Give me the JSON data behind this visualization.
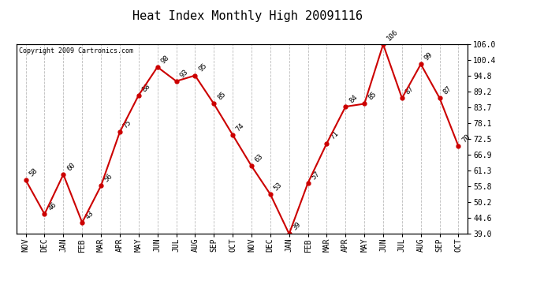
{
  "title": "Heat Index Monthly High 20091116",
  "copyright": "Copyright 2009 Cartronics.com",
  "months": [
    "NOV",
    "DEC",
    "JAN",
    "FEB",
    "MAR",
    "APR",
    "MAY",
    "JUN",
    "JUL",
    "AUG",
    "SEP",
    "OCT",
    "NOV",
    "DEC",
    "JAN",
    "FEB",
    "MAR",
    "APR",
    "MAY",
    "JUN",
    "JUL",
    "AUG",
    "SEP",
    "OCT"
  ],
  "values": [
    58,
    46,
    60,
    43,
    56,
    75,
    88,
    98,
    93,
    95,
    85,
    74,
    63,
    53,
    39,
    57,
    71,
    84,
    85,
    106,
    87,
    99,
    87,
    70
  ],
  "ylim": [
    39.0,
    106.0
  ],
  "yticks": [
    39.0,
    44.6,
    50.2,
    55.8,
    61.3,
    66.9,
    72.5,
    78.1,
    83.7,
    89.2,
    94.8,
    100.4,
    106.0
  ],
  "ytick_labels": [
    "39.0",
    "44.6",
    "50.2",
    "55.8",
    "61.3",
    "66.9",
    "72.5",
    "78.1",
    "83.7",
    "89.2",
    "94.8",
    "100.4",
    "106.0"
  ],
  "line_color": "#cc0000",
  "marker_color": "#cc0000",
  "bg_color": "#ffffff",
  "grid_color": "#bbbbbb",
  "title_fontsize": 11,
  "tick_fontsize": 7,
  "annotation_fontsize": 6.5,
  "copyright_fontsize": 6
}
